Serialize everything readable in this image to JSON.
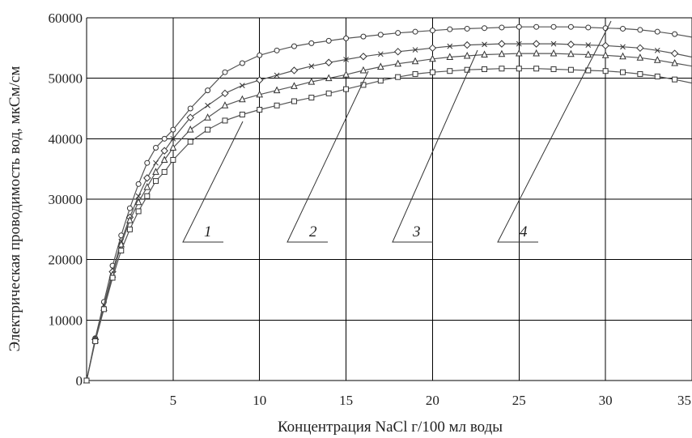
{
  "chart_data": {
    "type": "line",
    "xlabel": "Концентрация NaCl г/100 мл воды",
    "ylabel": "Электрическая проводимость вод, мкСм/см",
    "xlim": [
      0,
      35
    ],
    "ylim": [
      0,
      60000
    ],
    "x_ticks": [
      5,
      10,
      15,
      20,
      25,
      30,
      35
    ],
    "y_ticks": [
      0,
      10000,
      20000,
      30000,
      40000,
      50000,
      60000
    ],
    "grid": true,
    "x": [
      0,
      0.5,
      1,
      1.5,
      2,
      2.5,
      3,
      3.5,
      4,
      4.5,
      5,
      6,
      7,
      8,
      9,
      10,
      11,
      12,
      13,
      14,
      15,
      16,
      17,
      18,
      19,
      20,
      21,
      22,
      23,
      24,
      25,
      26,
      27,
      28,
      29,
      30,
      31,
      32,
      33,
      34,
      35
    ],
    "series": [
      {
        "name": "4",
        "marker": "circle",
        "values": [
          0,
          7000,
          13000,
          19000,
          24000,
          28500,
          32500,
          36000,
          38500,
          40000,
          41500,
          45000,
          48000,
          51000,
          52500,
          53800,
          54600,
          55300,
          55800,
          56200,
          56600,
          56900,
          57200,
          57500,
          57700,
          57900,
          58100,
          58200,
          58300,
          58400,
          58500,
          58500,
          58500,
          58500,
          58400,
          58300,
          58200,
          58000,
          57700,
          57300,
          56800
        ]
      },
      {
        "name": "3",
        "marker": "diamond-x",
        "values": [
          0,
          6800,
          12500,
          18000,
          23000,
          27000,
          30500,
          33500,
          36000,
          38000,
          40000,
          43500,
          45500,
          47500,
          48800,
          49700,
          50500,
          51300,
          52000,
          52600,
          53100,
          53600,
          54000,
          54400,
          54700,
          55000,
          55300,
          55500,
          55600,
          55700,
          55700,
          55700,
          55700,
          55600,
          55500,
          55400,
          55200,
          55000,
          54600,
          54100,
          53500
        ]
      },
      {
        "name": "2",
        "marker": "triangle",
        "values": [
          0,
          6700,
          12000,
          17500,
          22500,
          26500,
          29500,
          32000,
          34500,
          36500,
          38500,
          41500,
          43500,
          45500,
          46500,
          47300,
          48000,
          48700,
          49400,
          50000,
          50600,
          51300,
          51900,
          52400,
          52800,
          53200,
          53500,
          53700,
          53900,
          54000,
          54100,
          54100,
          54100,
          54000,
          53900,
          53800,
          53600,
          53400,
          53000,
          52500,
          52000
        ]
      },
      {
        "name": "1",
        "marker": "square",
        "values": [
          0,
          6500,
          11800,
          17000,
          21500,
          25000,
          28000,
          30500,
          33000,
          34500,
          36500,
          39500,
          41500,
          43000,
          44000,
          44800,
          45500,
          46200,
          46800,
          47500,
          48200,
          48900,
          49600,
          50200,
          50700,
          51000,
          51200,
          51400,
          51500,
          51600,
          51600,
          51600,
          51500,
          51400,
          51300,
          51200,
          51000,
          50700,
          50300,
          49800,
          49200
        ]
      }
    ],
    "labels": [
      "1",
      "2",
      "3",
      "4"
    ]
  }
}
